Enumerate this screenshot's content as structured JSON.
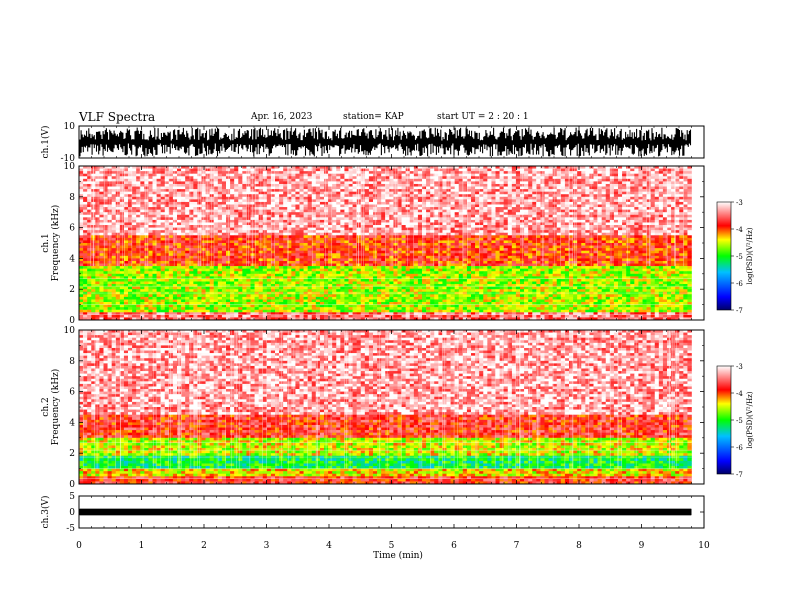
{
  "header": {
    "title": "VLF Spectra",
    "date": "Apr. 16, 2023",
    "station": "station= KAP",
    "start": "start  UT =   2 : 20 : 1"
  },
  "chart_data": [
    {
      "type": "line",
      "panel": "ch1-waveform",
      "ylabel": "ch.1(V)",
      "ylim": [
        -10,
        10
      ],
      "yticks": [
        "10",
        "-10"
      ],
      "xlim": [
        0,
        10
      ],
      "fill_range": [
        -9,
        9
      ],
      "color": "#000000"
    },
    {
      "type": "heatmap",
      "panel": "ch1-spectrogram",
      "ylabel": "ch.1 Frequency (kHz)",
      "ylim": [
        0,
        10
      ],
      "yticks": [
        "0",
        "2",
        "4",
        "6",
        "8",
        "10"
      ],
      "xlim": [
        0,
        9.8
      ],
      "colorbar": {
        "label": "log(PSD)(V²/Hz)",
        "range": [
          -7,
          -3
        ],
        "ticks": [
          "-3",
          "-4",
          "-5",
          "-6",
          "-7"
        ]
      },
      "bands": [
        {
          "from": 0.0,
          "to": 0.5,
          "level": -3.5
        },
        {
          "from": 0.5,
          "to": 3.5,
          "level": -4.6
        },
        {
          "from": 3.5,
          "to": 5.5,
          "level": -3.9
        },
        {
          "from": 5.5,
          "to": 10.0,
          "level": -3.3
        }
      ]
    },
    {
      "type": "heatmap",
      "panel": "ch2-spectrogram",
      "ylabel": "ch.2 Frequency (kHz)",
      "ylim": [
        0,
        10
      ],
      "yticks": [
        "0",
        "2",
        "4",
        "6",
        "8",
        "10"
      ],
      "xlim": [
        0,
        9.8
      ],
      "colorbar": {
        "label": "log(PSD)(V²/Hz)",
        "range": [
          -7,
          -3
        ],
        "ticks": [
          "-3",
          "-4",
          "-5",
          "-6",
          "-7"
        ]
      },
      "bands": [
        {
          "from": 0.0,
          "to": 0.5,
          "level": -3.8
        },
        {
          "from": 0.5,
          "to": 1.0,
          "level": -4.4
        },
        {
          "from": 1.0,
          "to": 1.8,
          "level": -5.1
        },
        {
          "from": 1.8,
          "to": 3.0,
          "level": -4.5
        },
        {
          "from": 3.0,
          "to": 4.5,
          "level": -3.8
        },
        {
          "from": 4.5,
          "to": 10.0,
          "level": -3.3
        }
      ]
    },
    {
      "type": "line",
      "panel": "ch3-waveform",
      "ylabel": "ch.3(V)",
      "ylim": [
        -5,
        5
      ],
      "yticks": [
        "5",
        "0",
        "-5"
      ],
      "xlim": [
        0,
        10
      ],
      "fill_range": [
        -1,
        1
      ],
      "color": "#000000"
    }
  ],
  "x_axis": {
    "label": "Time (min)",
    "range": [
      0,
      10
    ],
    "ticks": [
      "0",
      "1",
      "2",
      "3",
      "4",
      "5",
      "6",
      "7",
      "8",
      "9",
      "10"
    ]
  },
  "colors": {
    "red": "#ff0000",
    "yellow": "#ffff00",
    "green": "#00ff00",
    "blue": "#0000ff",
    "navy": "#000066"
  }
}
